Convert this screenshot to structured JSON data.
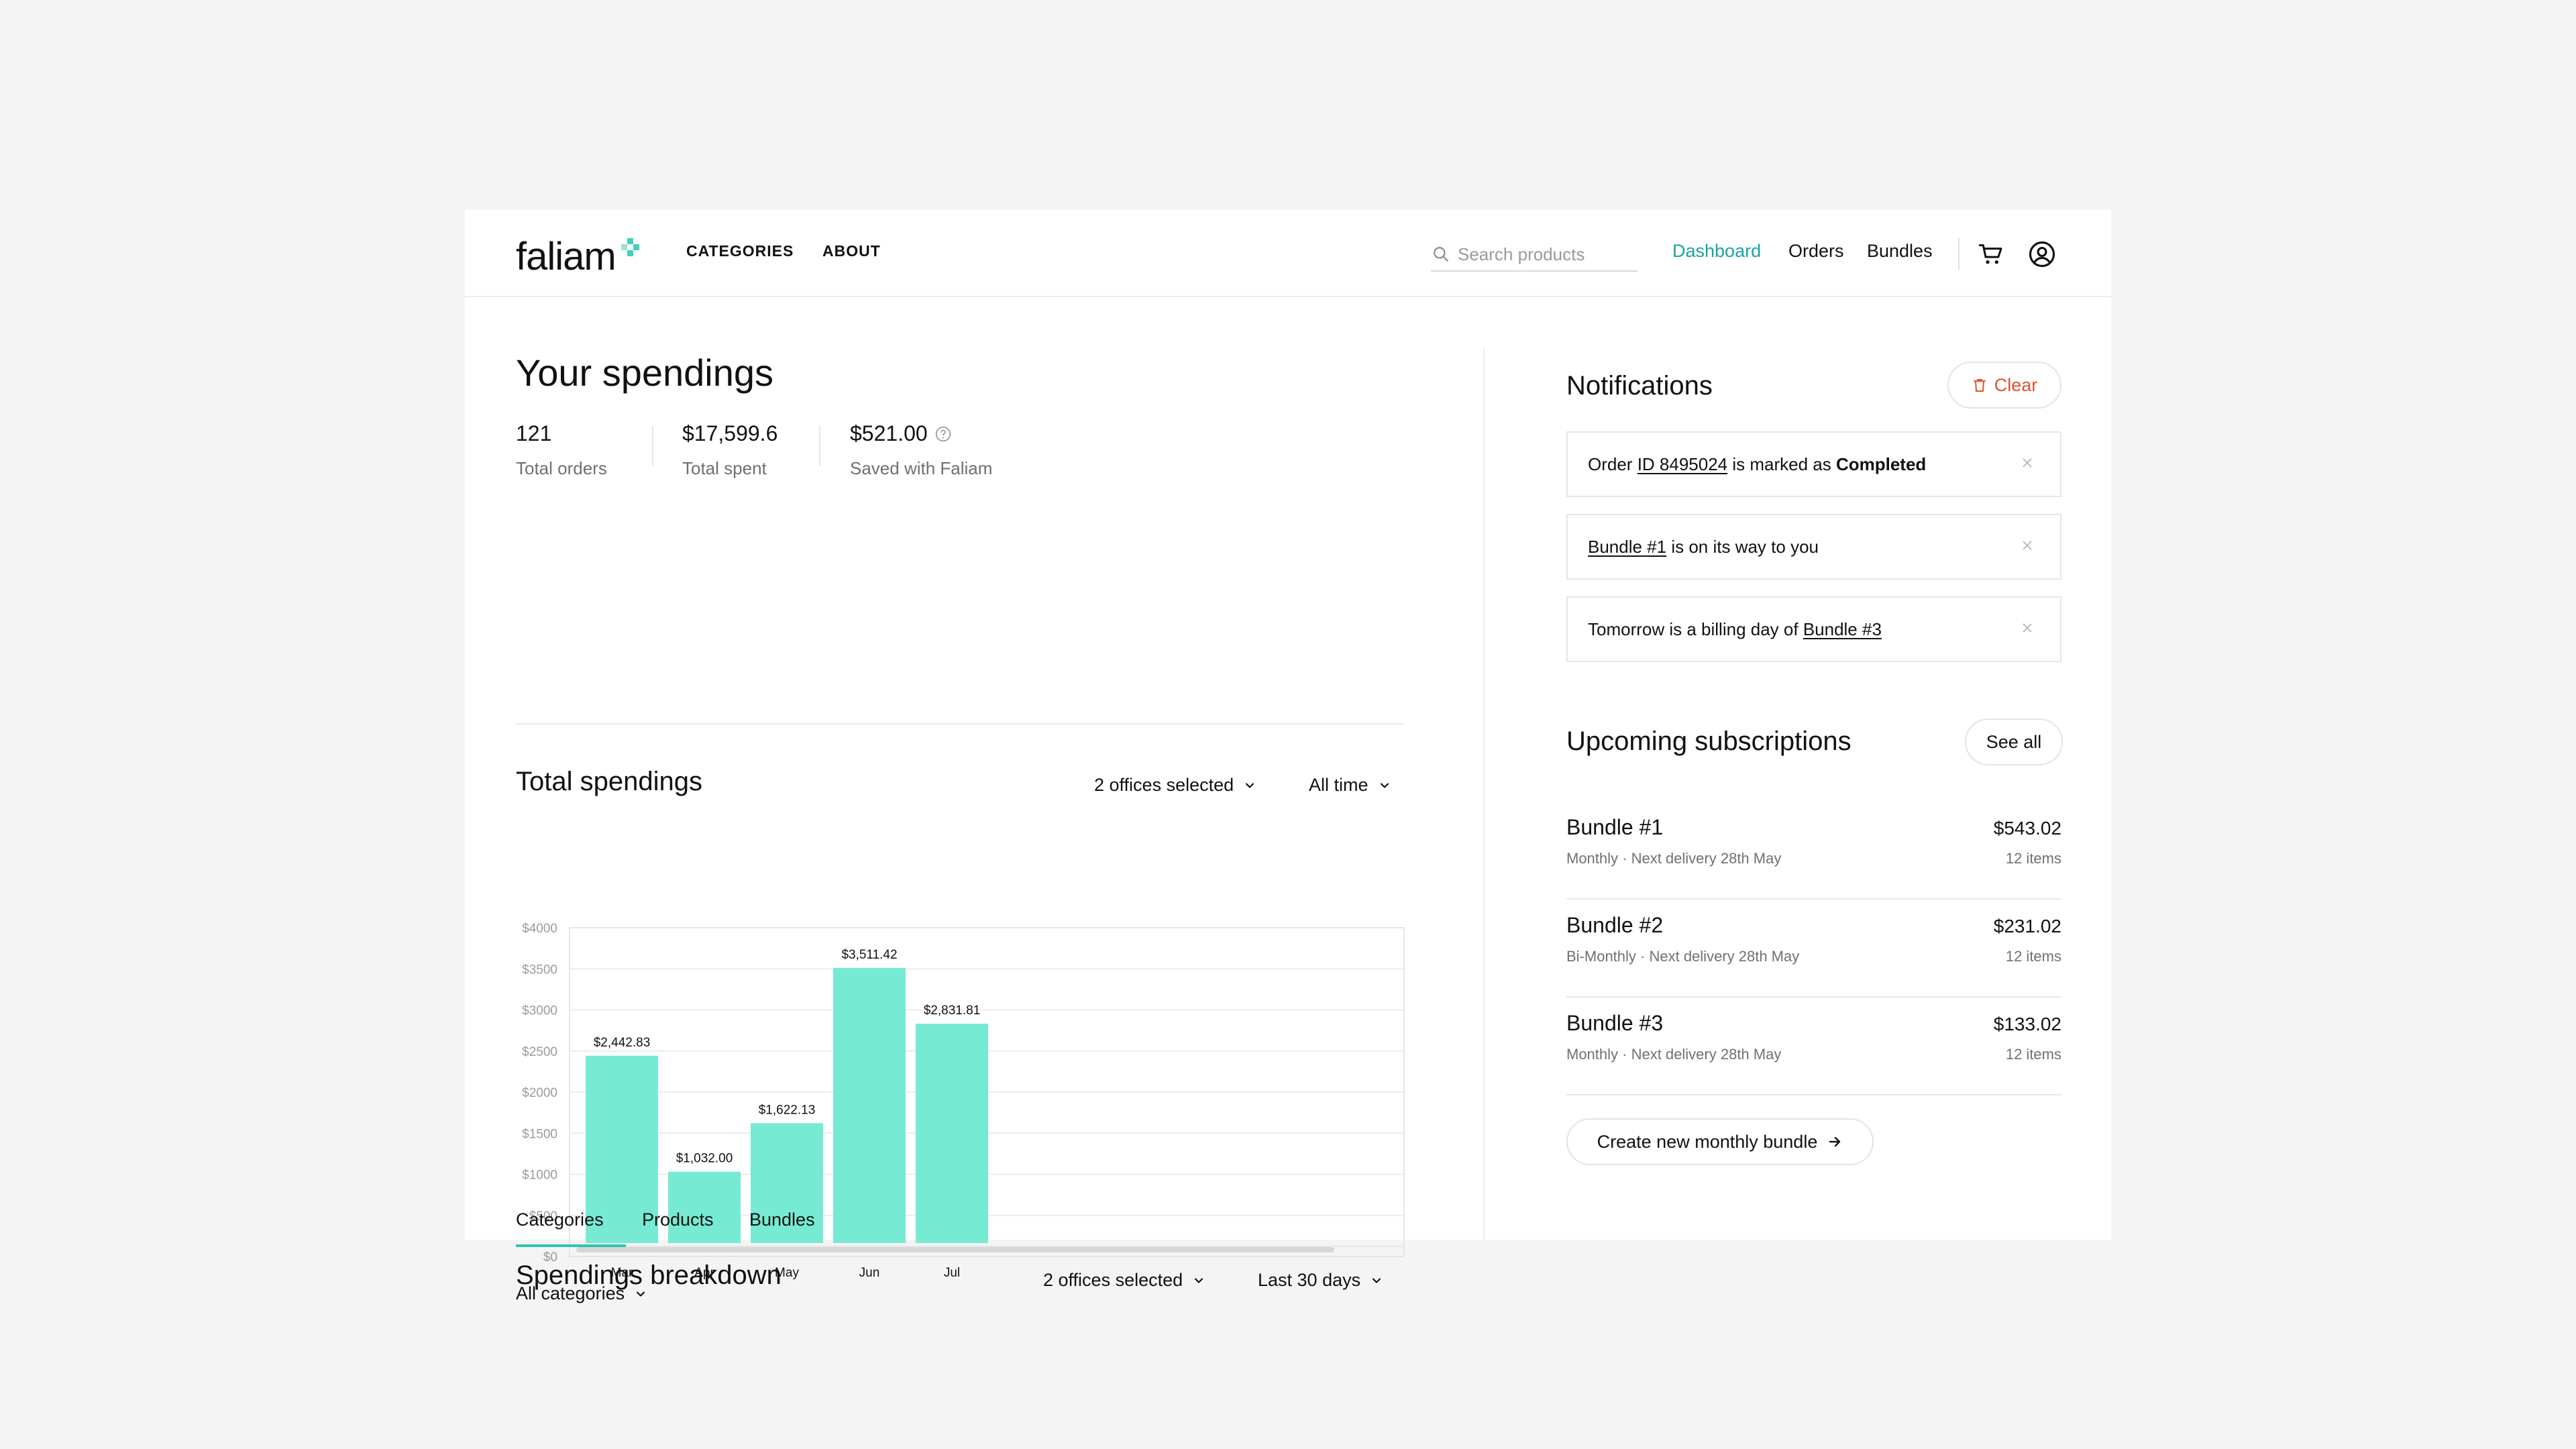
{
  "header": {
    "brand": "faliam",
    "nav": [
      "CATEGORIES",
      "ABOUT"
    ],
    "search_placeholder": "Search products",
    "right_nav": [
      "Dashboard",
      "Orders",
      "Bundles"
    ],
    "active_nav": "Dashboard"
  },
  "spendings": {
    "title": "Your spendings",
    "stats": [
      {
        "value": "121",
        "label": "Total orders"
      },
      {
        "value": "$17,599.6",
        "label": "Total spent"
      },
      {
        "value": "$521.00",
        "label": "Saved with Faliam"
      }
    ]
  },
  "total": {
    "title": "Total spendings",
    "office_filter": "2 offices selected",
    "time_filter": "All time"
  },
  "chart_data": {
    "type": "bar",
    "categories": [
      "Mar",
      "Apr",
      "May",
      "Jun",
      "Jul"
    ],
    "values": [
      2442.83,
      1032.0,
      1622.13,
      3511.42,
      2831.81
    ],
    "value_labels": [
      "$2,442.83",
      "$1,032.00",
      "$1,622.13",
      "$3,511.42",
      "$2,831.81"
    ],
    "yticks": [
      "$0",
      "$500",
      "$1000",
      "$1500",
      "$2000",
      "$2500",
      "$3000",
      "$3500",
      "$4000"
    ],
    "ylim": [
      0,
      4000
    ],
    "grid": true,
    "color": "#76ead2"
  },
  "breakdown": {
    "title": "Spendings breakdown",
    "office_filter": "2 offices selected",
    "time_filter": "Last 30 days",
    "tabs": [
      "Categories",
      "Products",
      "Bundles"
    ],
    "category_filter": "All categories"
  },
  "notifications": {
    "title": "Notifications",
    "clear_label": "Clear",
    "items": [
      {
        "pre": "Order ",
        "link": "ID 8495024",
        "mid": " is marked as ",
        "bold": "Completed",
        "post": ""
      },
      {
        "pre": "",
        "link": "Bundle #1",
        "mid": " is on its way to you",
        "bold": "",
        "post": ""
      },
      {
        "pre": "Tomorrow is a billing day of ",
        "link": "Bundle #3",
        "mid": "",
        "bold": "",
        "post": ""
      }
    ]
  },
  "subscriptions": {
    "title": "Upcoming subscriptions",
    "see_all": "See all",
    "items": [
      {
        "name": "Bundle #1",
        "meta": "Monthly · Next delivery 28th May",
        "price": "$543.02",
        "items": "12 items"
      },
      {
        "name": "Bundle #2",
        "meta": "Bi-Monthly · Next delivery 28th May",
        "price": "$231.02",
        "items": "12 items"
      },
      {
        "name": "Bundle #3",
        "meta": "Monthly · Next delivery 28th May",
        "price": "$133.02",
        "items": "12 items"
      }
    ],
    "create_label": "Create new monthly bundle"
  },
  "colors": {
    "accent": "#1aa3a3",
    "bar": "#76ead2",
    "danger": "#e0522e"
  }
}
